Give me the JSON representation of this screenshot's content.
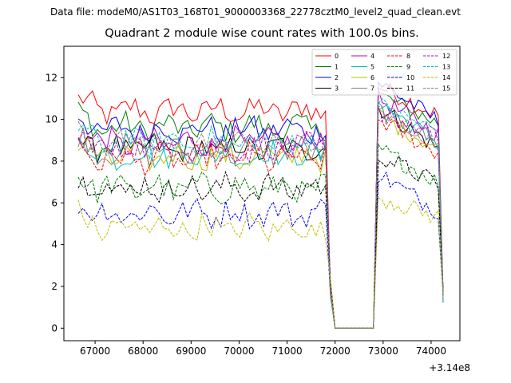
{
  "figure": {
    "suptitle": "Data file: modeM0/AS1T03_168T01_9000003368_22778cztM0_level2_quad_clean.evt"
  },
  "chart_data": {
    "type": "line",
    "title": "Quadrant 2 module wise count rates with 100.0s bins.",
    "xlabel": "",
    "ylabel": "",
    "x_offset_label": "+3.14e8",
    "xlim": [
      66350,
      74600
    ],
    "ylim": [
      -0.6,
      13.5
    ],
    "xticks": [
      67000,
      68000,
      69000,
      70000,
      71000,
      72000,
      73000,
      74000
    ],
    "yticks": [
      0,
      2,
      4,
      6,
      8,
      10,
      12
    ],
    "grid": false,
    "legend": {
      "placement": "top-right",
      "columns": 4
    },
    "segments": [
      {
        "from": 66650,
        "to": 71800
      },
      {
        "from": 72000,
        "to": 72800
      },
      {
        "from": 72800,
        "to": 74250
      }
    ],
    "series": [
      {
        "name": "0",
        "color": "#ff0000",
        "dash": false,
        "levels": [
          10.4,
          0,
          11.6,
          10.2
        ]
      },
      {
        "name": "1",
        "color": "#008000",
        "dash": false,
        "levels": [
          9.6,
          0,
          11.2,
          9.8
        ]
      },
      {
        "name": "2",
        "color": "#0000ff",
        "dash": false,
        "levels": [
          9.5,
          0,
          11.8,
          9.9
        ]
      },
      {
        "name": "3",
        "color": "#000000",
        "dash": false,
        "levels": [
          8.6,
          0,
          10.6,
          8.6
        ]
      },
      {
        "name": "4",
        "color": "#bf00bf",
        "dash": false,
        "levels": [
          8.9,
          0,
          11.0,
          9.3
        ]
      },
      {
        "name": "5",
        "color": "#00bfbf",
        "dash": false,
        "levels": [
          8.3,
          0,
          10.8,
          8.9
        ]
      },
      {
        "name": "6",
        "color": "#bfbf00",
        "dash": false,
        "levels": [
          8.2,
          0,
          10.2,
          8.6
        ]
      },
      {
        "name": "7",
        "color": "#808080",
        "dash": false,
        "levels": [
          8.5,
          0,
          10.5,
          8.8
        ]
      },
      {
        "name": "8",
        "color": "#ff0000",
        "dash": true,
        "levels": [
          8.1,
          0,
          10.0,
          8.4
        ]
      },
      {
        "name": "9",
        "color": "#008000",
        "dash": true,
        "levels": [
          6.7,
          0,
          8.6,
          7.0
        ]
      },
      {
        "name": "10",
        "color": "#0000ff",
        "dash": true,
        "levels": [
          5.5,
          0,
          7.4,
          5.6
        ]
      },
      {
        "name": "11",
        "color": "#000000",
        "dash": true,
        "levels": [
          6.7,
          0,
          8.3,
          6.9
        ]
      },
      {
        "name": "12",
        "color": "#bf00bf",
        "dash": true,
        "levels": [
          8.6,
          0,
          10.4,
          9.1
        ]
      },
      {
        "name": "13",
        "color": "#00bfbf",
        "dash": true,
        "levels": [
          8.9,
          0,
          10.7,
          9.4
        ]
      },
      {
        "name": "14",
        "color": "#bfbf00",
        "dash": true,
        "levels": [
          4.8,
          0,
          6.3,
          5.3
        ]
      },
      {
        "name": "15",
        "color": "#808080",
        "dash": true,
        "levels": [
          8.8,
          0,
          10.3,
          8.9
        ]
      }
    ]
  }
}
